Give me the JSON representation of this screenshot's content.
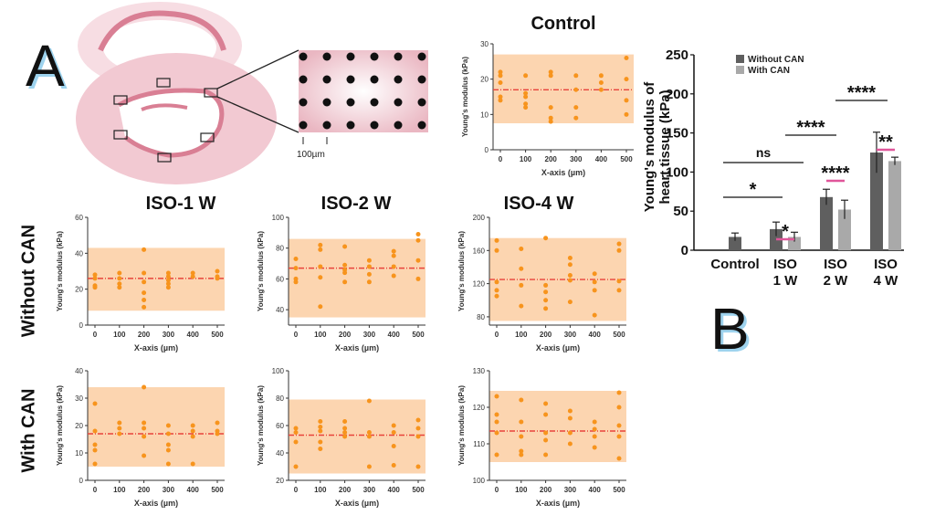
{
  "panel_labels": {
    "a": "A",
    "b": "B"
  },
  "column_titles": [
    "ISO-1 W",
    "ISO-2 W",
    "ISO-4 W"
  ],
  "row_titles": [
    "Without CAN",
    "With CAN"
  ],
  "diagram": {
    "scale_label": "100µm",
    "heart_color": "#f2c9d2",
    "chamber_color": "#d97f94"
  },
  "colors": {
    "band": "#fcd5b0",
    "dot": "#f7941d",
    "mean_line": "#e8433a",
    "bar_without": "#5f5f5f",
    "bar_with": "#a9a9a9",
    "sig_pink": "#e0569a"
  },
  "chart_data": [
    {
      "id": "control",
      "type": "scatter",
      "title": "Control",
      "xlabel": "X-axis (µm)",
      "ylabel": "Young's modulus (kPa)",
      "x_ticks": [
        "0",
        "100",
        "200",
        "300",
        "400",
        "500"
      ],
      "ylim": [
        0,
        30
      ],
      "yticks": [
        0,
        10,
        20,
        30
      ],
      "mean": 17,
      "band": [
        7.5,
        27
      ],
      "points": [
        [
          0,
          22
        ],
        [
          0,
          21
        ],
        [
          0,
          19
        ],
        [
          0,
          15
        ],
        [
          0,
          14
        ],
        [
          100,
          21
        ],
        [
          100,
          16
        ],
        [
          100,
          15
        ],
        [
          100,
          13
        ],
        [
          100,
          12
        ],
        [
          200,
          22
        ],
        [
          200,
          21
        ],
        [
          200,
          12
        ],
        [
          200,
          9
        ],
        [
          200,
          8
        ],
        [
          300,
          21
        ],
        [
          300,
          17
        ],
        [
          300,
          12
        ],
        [
          300,
          9
        ],
        [
          400,
          21
        ],
        [
          400,
          19
        ],
        [
          400,
          17
        ],
        [
          500,
          26
        ],
        [
          500,
          20
        ],
        [
          500,
          14
        ],
        [
          500,
          10
        ]
      ]
    },
    {
      "id": "iso1-without",
      "type": "scatter",
      "xlabel": "X-axis (µm)",
      "ylabel": "Young's modulus (kPa)",
      "x_ticks": [
        "0",
        "100",
        "200",
        "300",
        "400",
        "500"
      ],
      "ylim": [
        0,
        60
      ],
      "yticks": [
        0,
        20,
        40,
        60
      ],
      "mean": 26,
      "band": [
        8,
        43
      ],
      "points": [
        [
          0,
          28
        ],
        [
          0,
          26
        ],
        [
          0,
          22
        ],
        [
          0,
          21
        ],
        [
          100,
          29
        ],
        [
          100,
          26
        ],
        [
          100,
          23
        ],
        [
          100,
          21
        ],
        [
          200,
          42
        ],
        [
          200,
          29
        ],
        [
          200,
          24
        ],
        [
          200,
          18
        ],
        [
          200,
          14
        ],
        [
          200,
          10
        ],
        [
          300,
          29
        ],
        [
          300,
          27
        ],
        [
          300,
          25
        ],
        [
          300,
          23
        ],
        [
          300,
          21
        ],
        [
          400,
          29
        ],
        [
          400,
          27
        ],
        [
          500,
          30
        ],
        [
          500,
          27
        ],
        [
          500,
          26
        ]
      ]
    },
    {
      "id": "iso2-without",
      "type": "scatter",
      "xlabel": "X-axis (µm)",
      "ylabel": "Young's modulus (kPa)",
      "x_ticks": [
        "0",
        "100",
        "200",
        "300",
        "400",
        "500"
      ],
      "ylim": [
        30,
        100
      ],
      "yticks": [
        40,
        60,
        80,
        100
      ],
      "mean": 67,
      "band": [
        35,
        86
      ],
      "points": [
        [
          0,
          73
        ],
        [
          0,
          67
        ],
        [
          0,
          60
        ],
        [
          0,
          58
        ],
        [
          100,
          82
        ],
        [
          100,
          79
        ],
        [
          100,
          68
        ],
        [
          100,
          61
        ],
        [
          100,
          42
        ],
        [
          200,
          81
        ],
        [
          200,
          69
        ],
        [
          200,
          66
        ],
        [
          200,
          64
        ],
        [
          200,
          58
        ],
        [
          300,
          72
        ],
        [
          300,
          68
        ],
        [
          300,
          63
        ],
        [
          300,
          58
        ],
        [
          400,
          78
        ],
        [
          400,
          75
        ],
        [
          400,
          68
        ],
        [
          400,
          62
        ],
        [
          500,
          89
        ],
        [
          500,
          85
        ],
        [
          500,
          72
        ],
        [
          500,
          60
        ]
      ]
    },
    {
      "id": "iso4-without",
      "type": "scatter",
      "xlabel": "X-axis (µm)",
      "ylabel": "Young's modulus (kPa)",
      "x_ticks": [
        "0",
        "100",
        "200",
        "300",
        "400",
        "500"
      ],
      "ylim": [
        70,
        200
      ],
      "yticks": [
        80,
        120,
        160,
        200
      ],
      "mean": 125,
      "band": [
        75,
        175
      ],
      "points": [
        [
          0,
          172
        ],
        [
          0,
          160
        ],
        [
          0,
          122
        ],
        [
          0,
          112
        ],
        [
          0,
          105
        ],
        [
          100,
          162
        ],
        [
          100,
          138
        ],
        [
          100,
          118
        ],
        [
          100,
          93
        ],
        [
          200,
          175
        ],
        [
          200,
          118
        ],
        [
          200,
          110
        ],
        [
          200,
          100
        ],
        [
          200,
          90
        ],
        [
          300,
          151
        ],
        [
          300,
          143
        ],
        [
          300,
          130
        ],
        [
          300,
          124
        ],
        [
          300,
          98
        ],
        [
          400,
          132
        ],
        [
          400,
          122
        ],
        [
          400,
          112
        ],
        [
          400,
          82
        ],
        [
          500,
          168
        ],
        [
          500,
          160
        ],
        [
          500,
          123
        ],
        [
          500,
          112
        ]
      ]
    },
    {
      "id": "iso1-with",
      "type": "scatter",
      "xlabel": "X-axis (µm)",
      "ylabel": "Young's modulus (kPa)",
      "x_ticks": [
        "0",
        "100",
        "200",
        "300",
        "400",
        "500"
      ],
      "ylim": [
        0,
        40
      ],
      "yticks": [
        0,
        10,
        20,
        30,
        40
      ],
      "mean": 17,
      "band": [
        5,
        34
      ],
      "points": [
        [
          0,
          28
        ],
        [
          0,
          18
        ],
        [
          0,
          13
        ],
        [
          0,
          11
        ],
        [
          0,
          6
        ],
        [
          100,
          21
        ],
        [
          100,
          19
        ],
        [
          100,
          17
        ],
        [
          200,
          34
        ],
        [
          200,
          21
        ],
        [
          200,
          19
        ],
        [
          200,
          16
        ],
        [
          200,
          9
        ],
        [
          300,
          20
        ],
        [
          300,
          17
        ],
        [
          300,
          13
        ],
        [
          300,
          11
        ],
        [
          300,
          6
        ],
        [
          400,
          20
        ],
        [
          400,
          18
        ],
        [
          400,
          16
        ],
        [
          400,
          6
        ],
        [
          500,
          21
        ],
        [
          500,
          18
        ],
        [
          500,
          17
        ]
      ]
    },
    {
      "id": "iso2-with",
      "type": "scatter",
      "xlabel": "X-axis (µm)",
      "ylabel": "Young's modulus (kPa)",
      "x_ticks": [
        "0",
        "100",
        "200",
        "300",
        "400",
        "500"
      ],
      "ylim": [
        20,
        100
      ],
      "yticks": [
        20,
        40,
        60,
        80,
        100
      ],
      "mean": 53,
      "band": [
        25,
        79
      ],
      "points": [
        [
          0,
          58
        ],
        [
          0,
          55
        ],
        [
          0,
          48
        ],
        [
          0,
          30
        ],
        [
          100,
          63
        ],
        [
          100,
          59
        ],
        [
          100,
          56
        ],
        [
          100,
          48
        ],
        [
          100,
          43
        ],
        [
          200,
          63
        ],
        [
          200,
          58
        ],
        [
          200,
          55
        ],
        [
          200,
          52
        ],
        [
          300,
          78
        ],
        [
          300,
          55
        ],
        [
          300,
          52
        ],
        [
          300,
          30
        ],
        [
          400,
          60
        ],
        [
          400,
          55
        ],
        [
          400,
          45
        ],
        [
          400,
          31
        ],
        [
          500,
          64
        ],
        [
          500,
          58
        ],
        [
          500,
          52
        ],
        [
          500,
          30
        ]
      ]
    },
    {
      "id": "iso4-with",
      "type": "scatter",
      "xlabel": "X-axis (µm)",
      "ylabel": "Young's modulus (kPa)",
      "x_ticks": [
        "0",
        "100",
        "200",
        "300",
        "400",
        "500"
      ],
      "ylim": [
        100,
        130
      ],
      "yticks": [
        100,
        110,
        120,
        130
      ],
      "mean": 113.5,
      "band": [
        105,
        124.5
      ],
      "points": [
        [
          0,
          123
        ],
        [
          0,
          118
        ],
        [
          0,
          116
        ],
        [
          0,
          113
        ],
        [
          0,
          107
        ],
        [
          100,
          122
        ],
        [
          100,
          116
        ],
        [
          100,
          112
        ],
        [
          100,
          108
        ],
        [
          100,
          107
        ],
        [
          200,
          121
        ],
        [
          200,
          118
        ],
        [
          200,
          113
        ],
        [
          200,
          111
        ],
        [
          200,
          107
        ],
        [
          300,
          119
        ],
        [
          300,
          117
        ],
        [
          300,
          113
        ],
        [
          300,
          110
        ],
        [
          400,
          116
        ],
        [
          400,
          114
        ],
        [
          400,
          112
        ],
        [
          400,
          109
        ],
        [
          500,
          124
        ],
        [
          500,
          120
        ],
        [
          500,
          115
        ],
        [
          500,
          112
        ],
        [
          500,
          106
        ]
      ]
    },
    {
      "id": "summary",
      "type": "bar",
      "ylabel": "Young's modulus of heart tissue (kPa)",
      "categories": [
        "Control",
        "ISO 1 W",
        "ISO 2 W",
        "ISO 4 W"
      ],
      "ylim": [
        0,
        250
      ],
      "yticks": [
        0,
        50,
        100,
        150,
        200,
        250
      ],
      "legend": [
        "Without CAN",
        "With CAN"
      ],
      "series": [
        {
          "name": "Without CAN",
          "values": [
            17,
            27,
            68,
            125
          ],
          "errors": [
            5,
            9,
            10,
            26
          ]
        },
        {
          "name": "With CAN",
          "values": [
            null,
            17,
            52,
            114
          ],
          "errors": [
            null,
            6,
            12,
            5
          ]
        }
      ],
      "annotations": [
        "ns",
        "*",
        "*",
        "****",
        "****",
        "****",
        "**"
      ]
    }
  ]
}
